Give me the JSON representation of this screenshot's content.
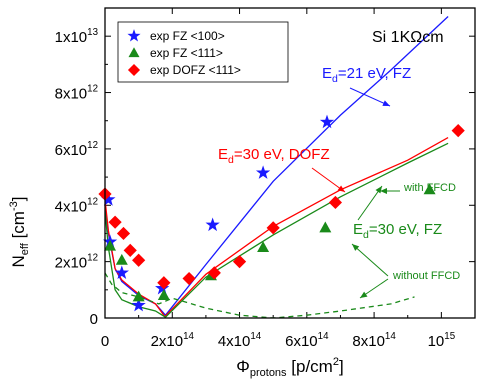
{
  "chart_data": {
    "type": "scatter",
    "title": "",
    "sample_label": "Si 1KΩcm",
    "xlabel": {
      "main": "Φ",
      "sub": "protons",
      "unit": " [p/cm",
      "sup": "2",
      "close": "]"
    },
    "ylabel": {
      "main": "N",
      "sub": "eff",
      "unit": " [cm",
      "sup": "-3",
      "close": "]"
    },
    "xlim": [
      0,
      1100000000000000.0
    ],
    "ylim": [
      0,
      11000000000000.0
    ],
    "x_ticks": [
      {
        "value": 0,
        "mant": "0",
        "exp": ""
      },
      {
        "value": 200000000000000.0,
        "mant": "2x10",
        "exp": "14"
      },
      {
        "value": 400000000000000.0,
        "mant": "4x10",
        "exp": "14"
      },
      {
        "value": 600000000000000.0,
        "mant": "6x10",
        "exp": "14"
      },
      {
        "value": 800000000000000.0,
        "mant": "8x10",
        "exp": "14"
      },
      {
        "value": 1000000000000000.0,
        "mant": "10",
        "exp": "15"
      }
    ],
    "y_ticks": [
      {
        "value": 0,
        "mant": "0",
        "exp": ""
      },
      {
        "value": 2000000000000.0,
        "mant": "2x10",
        "exp": "12"
      },
      {
        "value": 4000000000000.0,
        "mant": "4x10",
        "exp": "12"
      },
      {
        "value": 6000000000000.0,
        "mant": "6x10",
        "exp": "12"
      },
      {
        "value": 8000000000000.0,
        "mant": "8x10",
        "exp": "12"
      },
      {
        "value": 10000000000000.0,
        "mant": "1x10",
        "exp": "13"
      }
    ],
    "legend_position": "top-left",
    "series": [
      {
        "name": "exp FZ <100>",
        "marker": "star",
        "color": "#1a1aff",
        "points": [
          [
            10000000000000.0,
            4200000000000.0
          ],
          [
            15000000000000.0,
            2700000000000.0
          ],
          [
            50000000000000.0,
            1600000000000.0
          ],
          [
            100000000000000.0,
            450000000000.0
          ],
          [
            170000000000000.0,
            1050000000000.0
          ],
          [
            320000000000000.0,
            3300000000000.0
          ],
          [
            470000000000000.0,
            5150000000000.0
          ],
          [
            660000000000000.0,
            6950000000000.0
          ]
        ]
      },
      {
        "name": "exp FZ <111>",
        "marker": "triangle",
        "color": "#1a8a1a",
        "points": [
          [
            15000000000000.0,
            2550000000000.0
          ],
          [
            50000000000000.0,
            2050000000000.0
          ],
          [
            100000000000000.0,
            750000000000.0
          ],
          [
            175000000000000.0,
            800000000000.0
          ],
          [
            315000000000000.0,
            1500000000000.0
          ],
          [
            470000000000000.0,
            2500000000000.0
          ],
          [
            655000000000000.0,
            3200000000000.0
          ],
          [
            965000000000000.0,
            4550000000000.0
          ]
        ]
      },
      {
        "name": "exp DOFZ <111>",
        "marker": "diamond",
        "color": "#ff0000",
        "points": [
          [
            0,
            4400000000000.0
          ],
          [
            30000000000000.0,
            3400000000000.0
          ],
          [
            55000000000000.0,
            3000000000000.0
          ],
          [
            75000000000000.0,
            2400000000000.0
          ],
          [
            100000000000000.0,
            2050000000000.0
          ],
          [
            175000000000000.0,
            1250000000000.0
          ],
          [
            250000000000000.0,
            1400000000000.0
          ],
          [
            325000000000000.0,
            1600000000000.0
          ],
          [
            400000000000000.0,
            2000000000000.0
          ],
          [
            500000000000000.0,
            3200000000000.0
          ],
          [
            685000000000000.0,
            4100000000000.0
          ],
          [
            1050000000000000.0,
            6650000000000.0
          ]
        ]
      }
    ],
    "curves": [
      {
        "color": "#1a1aff",
        "dash": false,
        "points": [
          [
            0,
            3900000000000.0
          ],
          [
            10000000000000.0,
            3000000000000.0
          ],
          [
            30000000000000.0,
            1750000000000.0
          ],
          [
            50000000000000.0,
            1300000000000.0
          ],
          [
            100000000000000.0,
            800000000000.0
          ],
          [
            150000000000000.0,
            500000000000.0
          ],
          [
            180000000000000.0,
            100000000000.0
          ],
          [
            300000000000000.0,
            1900000000000.0
          ],
          [
            500000000000000.0,
            4850000000000.0
          ],
          [
            700000000000000.0,
            7200000000000.0
          ],
          [
            850000000000000.0,
            8800000000000.0
          ],
          [
            1020000000000000.0,
            10700000000000.0
          ]
        ]
      },
      {
        "color": "#ff0000",
        "dash": false,
        "points": [
          [
            0,
            4200000000000.0
          ],
          [
            10000000000000.0,
            3100000000000.0
          ],
          [
            30000000000000.0,
            1750000000000.0
          ],
          [
            50000000000000.0,
            1350000000000.0
          ],
          [
            100000000000000.0,
            850000000000.0
          ],
          [
            150000000000000.0,
            500000000000.0
          ],
          [
            178000000000000.0,
            50000000000.0
          ],
          [
            300000000000000.0,
            1550000000000.0
          ],
          [
            500000000000000.0,
            3250000000000.0
          ],
          [
            700000000000000.0,
            4550000000000.0
          ],
          [
            900000000000000.0,
            5600000000000.0
          ],
          [
            1020000000000000.0,
            6400000000000.0
          ]
        ]
      },
      {
        "color": "#1a8a1a",
        "dash": false,
        "points": [
          [
            0,
            3800000000000.0
          ],
          [
            10000000000000.0,
            2500000000000.0
          ],
          [
            30000000000000.0,
            1000000000000.0
          ],
          [
            50000000000000.0,
            650000000000.0
          ],
          [
            100000000000000.0,
            400000000000.0
          ],
          [
            150000000000000.0,
            250000000000.0
          ],
          [
            180000000000000.0,
            30000000000.0
          ],
          [
            300000000000000.0,
            1450000000000.0
          ],
          [
            500000000000000.0,
            2950000000000.0
          ],
          [
            700000000000000.0,
            4300000000000.0
          ],
          [
            900000000000000.0,
            5500000000000.0
          ],
          [
            1020000000000000.0,
            6200000000000.0
          ]
        ]
      },
      {
        "color": "#1a8a1a",
        "dash": true,
        "points": [
          [
            0,
            1600000000000.0
          ],
          [
            20000000000000.0,
            1200000000000.0
          ],
          [
            50000000000000.0,
            900000000000.0
          ],
          [
            100000000000000.0,
            750000000000.0
          ],
          [
            160000000000000.0,
            500000000000.0
          ],
          [
            200000000000000.0,
            700000000000.0
          ],
          [
            230000000000000.0,
            600000000000.0
          ],
          [
            300000000000000.0,
            350000000000.0
          ],
          [
            400000000000000.0,
            100000000000.0
          ],
          [
            500000000000000.0,
            0
          ],
          [
            600000000000000.0,
            100000000000.0
          ],
          [
            700000000000000.0,
            250000000000.0
          ],
          [
            850000000000000.0,
            500000000000.0
          ],
          [
            920000000000000.0,
            750000000000.0
          ]
        ]
      }
    ],
    "annotations": [
      {
        "id": "ed21",
        "text": "E",
        "sub": "d",
        "rest": "=21 eV, FZ",
        "color": "#1a1aff",
        "size": 15
      },
      {
        "id": "ed30dofz",
        "text": "E",
        "sub": "d",
        "rest": "=30 eV, DOFZ",
        "color": "#ff0000",
        "size": 15
      },
      {
        "id": "ed30fz",
        "text": "E",
        "sub": "d",
        "rest": "=30 eV, FZ",
        "color": "#1a8a1a",
        "size": 15
      },
      {
        "id": "withffcd",
        "text": "with FFCD",
        "sub": "",
        "rest": "",
        "color": "#1a8a1a",
        "size": 11
      },
      {
        "id": "withoutffcd",
        "text": "without FFCD",
        "sub": "",
        "rest": "",
        "color": "#1a8a1a",
        "size": 11
      }
    ]
  }
}
